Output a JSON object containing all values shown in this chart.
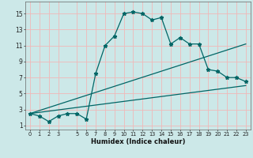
{
  "xlabel": "Humidex (Indice chaleur)",
  "bg_color": "#cce8e8",
  "grid_color": "#f0b8b8",
  "line_color": "#006666",
  "xlim": [
    -0.5,
    23.5
  ],
  "ylim": [
    0.5,
    16.5
  ],
  "xticks": [
    0,
    1,
    2,
    3,
    5,
    6,
    7,
    8,
    9,
    10,
    11,
    12,
    13,
    14,
    15,
    16,
    17,
    18,
    19,
    20,
    21,
    22,
    23
  ],
  "yticks": [
    1,
    3,
    5,
    7,
    9,
    11,
    13,
    15
  ],
  "main_x": [
    0,
    1,
    2,
    3,
    4,
    5,
    6,
    7,
    8,
    9,
    10,
    11,
    12,
    13,
    14,
    15,
    16,
    17,
    18,
    19,
    20,
    21,
    22,
    23
  ],
  "main_y": [
    2.5,
    2.2,
    1.5,
    2.2,
    2.5,
    2.5,
    1.8,
    7.5,
    11.0,
    12.2,
    15.0,
    15.2,
    15.0,
    14.2,
    14.5,
    11.2,
    12.0,
    11.2,
    11.2,
    8.0,
    7.8,
    7.0,
    7.0,
    6.5
  ],
  "trend1_x": [
    0,
    23
  ],
  "trend1_y": [
    2.5,
    11.2
  ],
  "trend2_x": [
    0,
    23
  ],
  "trend2_y": [
    2.5,
    6.0
  ],
  "xlabel_fontsize": 6,
  "tick_fontsize_x": 4.8,
  "tick_fontsize_y": 5.5
}
